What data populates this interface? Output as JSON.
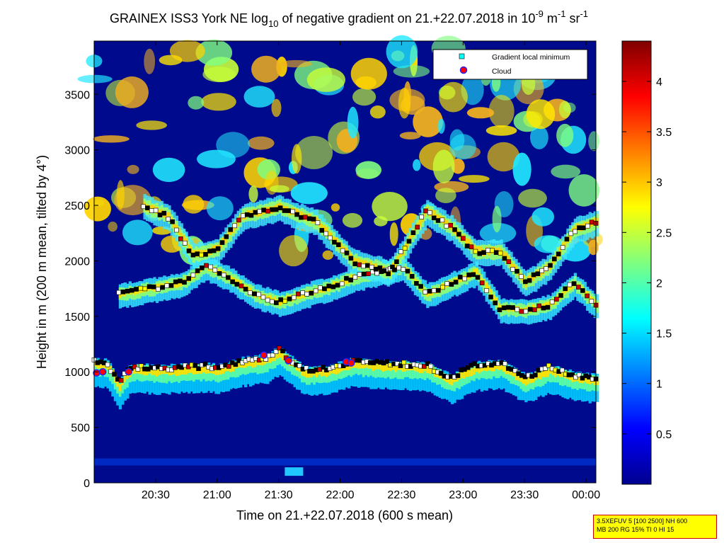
{
  "chart_data": {
    "type": "heatmap",
    "title": {
      "main": "GRAINEX ISS3 York NE log",
      "sub10": "10",
      "mid": " of negative gradient on 21.+22.07.2018 in 10",
      "exp1": "-9",
      "mid2": " m",
      "exp2": "-1",
      "mid3": " sr",
      "exp3": "-1"
    },
    "xlabel": "Time on 21.+22.07.2018 (600 s mean)",
    "ylabel": "Height in m (200 m mean, tilted by 4°)",
    "x_range_hours": [
      20.0,
      24.08
    ],
    "x_ticks": [
      {
        "hour": 20.5,
        "label": "20:30"
      },
      {
        "hour": 21.0,
        "label": "21:00"
      },
      {
        "hour": 21.5,
        "label": "21:30"
      },
      {
        "hour": 22.0,
        "label": "22:00"
      },
      {
        "hour": 22.5,
        "label": "22:30"
      },
      {
        "hour": 23.0,
        "label": "23:00"
      },
      {
        "hour": 23.5,
        "label": "23:30"
      },
      {
        "hour": 24.0,
        "label": "00:00"
      }
    ],
    "ylim": [
      0,
      3980
    ],
    "y_ticks": [
      0,
      500,
      1000,
      1500,
      2000,
      2500,
      3000,
      3500
    ],
    "colorbar": {
      "range": [
        0,
        4.4
      ],
      "ticks": [
        0.5,
        1,
        1.5,
        2,
        2.5,
        3,
        3.5,
        4
      ],
      "colormap": "jet"
    },
    "legend": {
      "position": "top-right",
      "entries": [
        {
          "label": "Gradient local minimum",
          "marker": "square",
          "color": "#00ffff"
        },
        {
          "label": "Cloud",
          "marker": "circle",
          "color": "#ff0000"
        }
      ]
    },
    "layers": {
      "boundary_layer_top": [
        {
          "t": 20.0,
          "h": 1100
        },
        {
          "t": 20.1,
          "h": 1080
        },
        {
          "t": 20.2,
          "h": 900
        },
        {
          "t": 20.3,
          "h": 1050
        },
        {
          "t": 20.5,
          "h": 1030
        },
        {
          "t": 20.7,
          "h": 1040
        },
        {
          "t": 20.9,
          "h": 1050
        },
        {
          "t": 21.0,
          "h": 1040
        },
        {
          "t": 21.2,
          "h": 1100
        },
        {
          "t": 21.4,
          "h": 1130
        },
        {
          "t": 21.5,
          "h": 1200
        },
        {
          "t": 21.7,
          "h": 1020
        },
        {
          "t": 21.9,
          "h": 1030
        },
        {
          "t": 22.1,
          "h": 1100
        },
        {
          "t": 22.3,
          "h": 1080
        },
        {
          "t": 22.5,
          "h": 1070
        },
        {
          "t": 22.7,
          "h": 1060
        },
        {
          "t": 22.9,
          "h": 950
        },
        {
          "t": 23.1,
          "h": 1060
        },
        {
          "t": 23.3,
          "h": 1080
        },
        {
          "t": 23.5,
          "h": 950
        },
        {
          "t": 23.7,
          "h": 1040
        },
        {
          "t": 23.9,
          "h": 970
        },
        {
          "t": 24.08,
          "h": 950
        }
      ],
      "layer_mid": [
        {
          "t": 20.2,
          "h": 1700
        },
        {
          "t": 20.5,
          "h": 1760
        },
        {
          "t": 20.7,
          "h": 1800
        },
        {
          "t": 20.9,
          "h": 1950
        },
        {
          "t": 21.1,
          "h": 1850
        },
        {
          "t": 21.3,
          "h": 1700
        },
        {
          "t": 21.5,
          "h": 1630
        },
        {
          "t": 21.7,
          "h": 1700
        },
        {
          "t": 21.9,
          "h": 1760
        },
        {
          "t": 22.1,
          "h": 1850
        },
        {
          "t": 22.3,
          "h": 1900
        },
        {
          "t": 22.5,
          "h": 1950
        },
        {
          "t": 22.7,
          "h": 1700
        },
        {
          "t": 22.9,
          "h": 1800
        },
        {
          "t": 23.1,
          "h": 1900
        },
        {
          "t": 23.3,
          "h": 1570
        },
        {
          "t": 23.5,
          "h": 1560
        },
        {
          "t": 23.7,
          "h": 1600
        },
        {
          "t": 23.9,
          "h": 1800
        },
        {
          "t": 24.08,
          "h": 1600
        }
      ],
      "layer_upper": [
        {
          "t": 20.4,
          "h": 2490
        },
        {
          "t": 20.6,
          "h": 2400
        },
        {
          "t": 20.8,
          "h": 2050
        },
        {
          "t": 21.0,
          "h": 2100
        },
        {
          "t": 21.2,
          "h": 2400
        },
        {
          "t": 21.5,
          "h": 2480
        },
        {
          "t": 21.8,
          "h": 2350
        },
        {
          "t": 22.1,
          "h": 2000
        },
        {
          "t": 22.4,
          "h": 1900
        },
        {
          "t": 22.7,
          "h": 2450
        },
        {
          "t": 22.9,
          "h": 2300
        },
        {
          "t": 23.1,
          "h": 2080
        },
        {
          "t": 23.3,
          "h": 2080
        },
        {
          "t": 23.5,
          "h": 1800
        },
        {
          "t": 23.7,
          "h": 1950
        },
        {
          "t": 23.9,
          "h": 2280
        },
        {
          "t": 24.08,
          "h": 2350
        }
      ]
    },
    "clouds": [
      {
        "t": 20.02,
        "h": 990
      },
      {
        "t": 20.07,
        "h": 1000
      },
      {
        "t": 20.28,
        "h": 1000
      },
      {
        "t": 21.38,
        "h": 1150
      },
      {
        "t": 21.58,
        "h": 1100
      },
      {
        "t": 22.05,
        "h": 1090
      },
      {
        "t": 22.09,
        "h": 1080
      }
    ]
  },
  "info_box": {
    "line1": "3.5XEFUV 5 [100 2500] NH 600",
    "line2": "MB 200 RG 15% TI 0 HI 15"
  }
}
